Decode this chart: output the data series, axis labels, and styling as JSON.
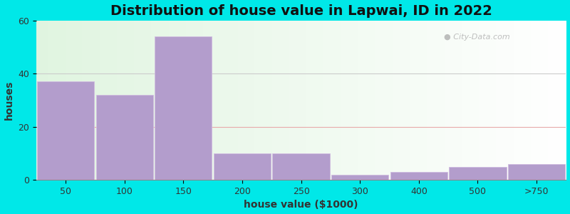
{
  "title": "Distribution of house value in Lapwai, ID in 2022",
  "xlabel": "house value ($1000)",
  "ylabel": "houses",
  "categories": [
    "50",
    "100",
    "150",
    "200",
    "250",
    "300",
    "400",
    "500",
    ">750"
  ],
  "values": [
    37,
    32,
    54,
    10,
    10,
    2,
    3,
    5,
    6
  ],
  "bar_color": "#b39dcc",
  "bar_edge_color": "#d0bce0",
  "background_outer": "#00e8e8",
  "ylim": [
    0,
    60
  ],
  "yticks": [
    0,
    20,
    40,
    60
  ],
  "title_fontsize": 14,
  "label_fontsize": 10,
  "tick_fontsize": 9,
  "watermark": "City-Data.com",
  "grid_color_40": "#cccccc",
  "grid_color_20": "#e8aaaa"
}
